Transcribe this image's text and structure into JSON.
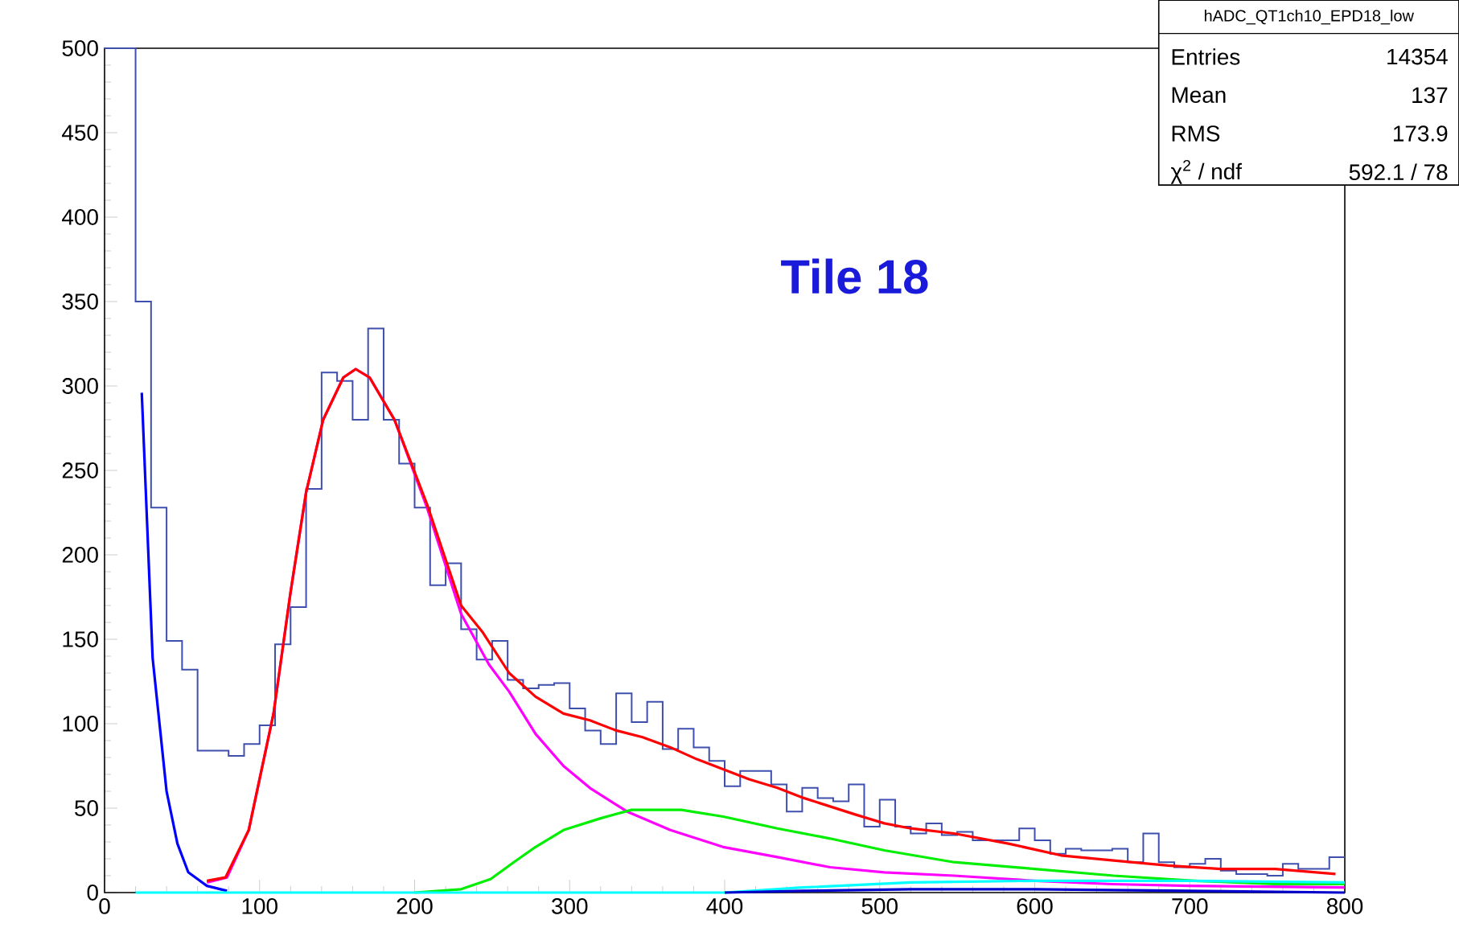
{
  "chart_data": {
    "type": "histogram",
    "title": "Tile 18",
    "annotations": [
      "hADC_QT1ch10_EPD18_low",
      "Entries",
      "14354",
      "Mean",
      "137",
      "RMS",
      "173.9",
      "χ$^{2}$ / ndf",
      "592.1 / 78"
    ],
    "bins": [
      0,
      10,
      20,
      30,
      40,
      50,
      60,
      70,
      80,
      90,
      100,
      110,
      120,
      130,
      140,
      150,
      160,
      170,
      180,
      190,
      200,
      210,
      220,
      230,
      240,
      250,
      260,
      270,
      280,
      290,
      300,
      310,
      320,
      330,
      340,
      350,
      360,
      370,
      380,
      390,
      400,
      410,
      420,
      430,
      440,
      450,
      460,
      470,
      480,
      490,
      500,
      510,
      520,
      530,
      540,
      550,
      560,
      570,
      580,
      590,
      600,
      610,
      620,
      630,
      640,
      650,
      660,
      670,
      680,
      690,
      700,
      710,
      720,
      730,
      740,
      750,
      760,
      770,
      780,
      790,
      800
    ],
    "values": [
      500,
      500,
      350,
      228,
      149,
      132,
      84,
      84,
      81,
      88,
      99,
      147,
      169,
      239,
      308,
      303,
      280,
      334,
      280,
      254,
      228,
      182,
      195,
      156,
      138,
      149,
      126,
      121,
      123,
      124,
      109,
      96,
      88,
      118,
      101,
      113,
      85,
      97,
      86,
      78,
      63,
      72,
      72,
      64,
      48,
      62,
      56,
      54,
      64,
      39,
      55,
      39,
      35,
      41,
      34,
      36,
      31,
      31,
      31,
      38,
      31,
      23,
      26,
      25,
      25,
      26,
      18,
      35,
      18,
      15,
      17,
      20,
      13,
      11,
      11,
      10,
      17,
      14,
      14,
      21
    ],
    "color": "#3f4fae",
    "series": [
      {
        "type": "line",
        "color": "#0000ff",
        "x": [
          24,
          31,
          40,
          47,
          54,
          66,
          79
        ],
        "values": [
          296,
          139,
          60,
          29,
          12,
          4,
          1
        ]
      },
      {
        "type": "line",
        "color": "#ff00ff",
        "x": [
          66,
          79,
          93,
          109,
          120,
          130,
          141,
          154,
          162,
          171,
          187,
          208,
          230,
          248,
          261,
          278,
          296,
          313,
          337,
          365,
          399,
          434,
          468,
          503,
          548,
          600,
          650,
          700,
          800
        ],
        "values": [
          6,
          9,
          37,
          106,
          178,
          237,
          280,
          305,
          310,
          305,
          280,
          228,
          165,
          135,
          119,
          94,
          75,
          62,
          48,
          37,
          27,
          21,
          15,
          12,
          10,
          7,
          5,
          4,
          3
        ]
      },
      {
        "type": "line",
        "color": "#00ee00",
        "x": [
          200,
          230,
          249,
          264,
          278,
          296,
          320,
          340,
          372,
          399,
          434,
          468,
          503,
          548,
          600,
          651,
          703,
          755,
          800
        ],
        "values": [
          0,
          2,
          8,
          18,
          27,
          37,
          44,
          49,
          49,
          45,
          38,
          32,
          25,
          18,
          14,
          10,
          7,
          5,
          5
        ]
      },
      {
        "type": "line",
        "color": "#00ffff",
        "x": [
          20,
          400,
          450,
          520,
          600,
          700,
          800
        ],
        "values": [
          0,
          0,
          3,
          6,
          7,
          7,
          6
        ]
      },
      {
        "type": "line",
        "color": "#0000cc",
        "x": [
          400,
          450,
          520,
          600,
          700,
          800
        ],
        "values": [
          0,
          1,
          2,
          2,
          1,
          0
        ]
      },
      {
        "type": "line",
        "color": "#ff0000",
        "x": [
          66,
          78,
          93,
          109,
          120,
          130,
          141,
          154,
          162,
          171,
          187,
          208,
          230,
          244,
          261,
          278,
          296,
          313,
          330,
          347,
          365,
          382,
          399,
          416,
          434,
          451,
          468,
          485,
          503,
          520,
          548,
          583,
          617,
          651,
          686,
          720,
          755,
          794
        ],
        "values": [
          7,
          9,
          37,
          106,
          178,
          237,
          280,
          305,
          310,
          305,
          280,
          230,
          170,
          154,
          130,
          116,
          106,
          102,
          96,
          92,
          86,
          79,
          73,
          67,
          62,
          56,
          51,
          46,
          41,
          38,
          35,
          29,
          22,
          19,
          16,
          14,
          14,
          11
        ]
      }
    ],
    "xlim": [
      0,
      800
    ],
    "xticks": [
      0,
      100,
      200,
      300,
      400,
      500,
      600,
      700,
      800
    ],
    "ylim": [
      0,
      500
    ],
    "yticks": [
      0,
      50,
      100,
      150,
      200,
      250,
      300,
      350,
      400,
      450,
      500
    ]
  }
}
